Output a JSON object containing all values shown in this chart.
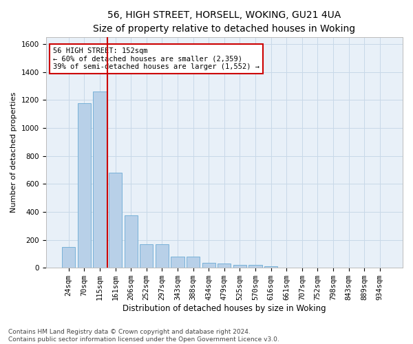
{
  "title": "56, HIGH STREET, HORSELL, WOKING, GU21 4UA",
  "subtitle": "Size of property relative to detached houses in Woking",
  "xlabel": "Distribution of detached houses by size in Woking",
  "ylabel": "Number of detached properties",
  "categories": [
    "24sqm",
    "70sqm",
    "115sqm",
    "161sqm",
    "206sqm",
    "252sqm",
    "297sqm",
    "343sqm",
    "388sqm",
    "434sqm",
    "479sqm",
    "525sqm",
    "570sqm",
    "616sqm",
    "661sqm",
    "707sqm",
    "752sqm",
    "798sqm",
    "843sqm",
    "889sqm",
    "934sqm"
  ],
  "values": [
    150,
    1175,
    1260,
    680,
    375,
    168,
    168,
    80,
    80,
    35,
    30,
    22,
    22,
    13,
    0,
    0,
    0,
    0,
    0,
    0,
    0
  ],
  "bar_color": "#b8d0e8",
  "bar_edgecolor": "#6aaad4",
  "vline_index": 2.5,
  "vline_color": "#cc0000",
  "annotation_text": "56 HIGH STREET: 152sqm\n← 60% of detached houses are smaller (2,359)\n39% of semi-detached houses are larger (1,552) →",
  "annotation_box_edgecolor": "#cc0000",
  "ylim": [
    0,
    1650
  ],
  "yticks": [
    0,
    200,
    400,
    600,
    800,
    1000,
    1200,
    1400,
    1600
  ],
  "grid_color": "#c8d8e8",
  "bg_color": "#e8f0f8",
  "footnote": "Contains HM Land Registry data © Crown copyright and database right 2024.\nContains public sector information licensed under the Open Government Licence v3.0.",
  "title_fontsize": 10,
  "xlabel_fontsize": 8.5,
  "ylabel_fontsize": 8,
  "tick_fontsize": 7.5,
  "annotation_fontsize": 7.5,
  "footnote_fontsize": 6.5
}
